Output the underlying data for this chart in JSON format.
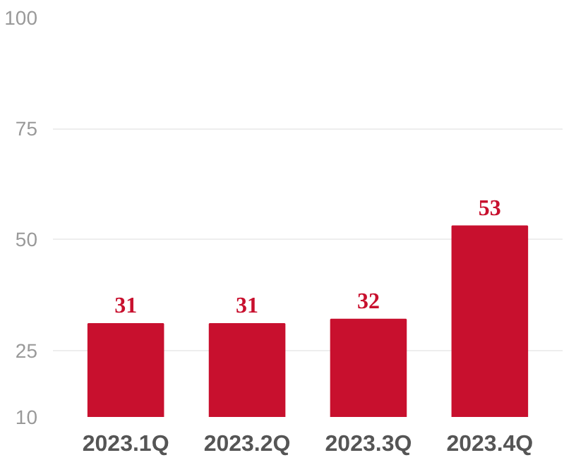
{
  "chart_data": {
    "type": "bar",
    "categories": [
      "2023.1Q",
      "2023.2Q",
      "2023.3Q",
      "2023.4Q"
    ],
    "values": [
      31,
      31,
      32,
      53
    ],
    "color": "#c8102e",
    "data_labels": true,
    "ylim": [
      10,
      100
    ],
    "yticks": [
      10,
      25,
      50,
      75,
      100
    ],
    "grid": "y"
  }
}
